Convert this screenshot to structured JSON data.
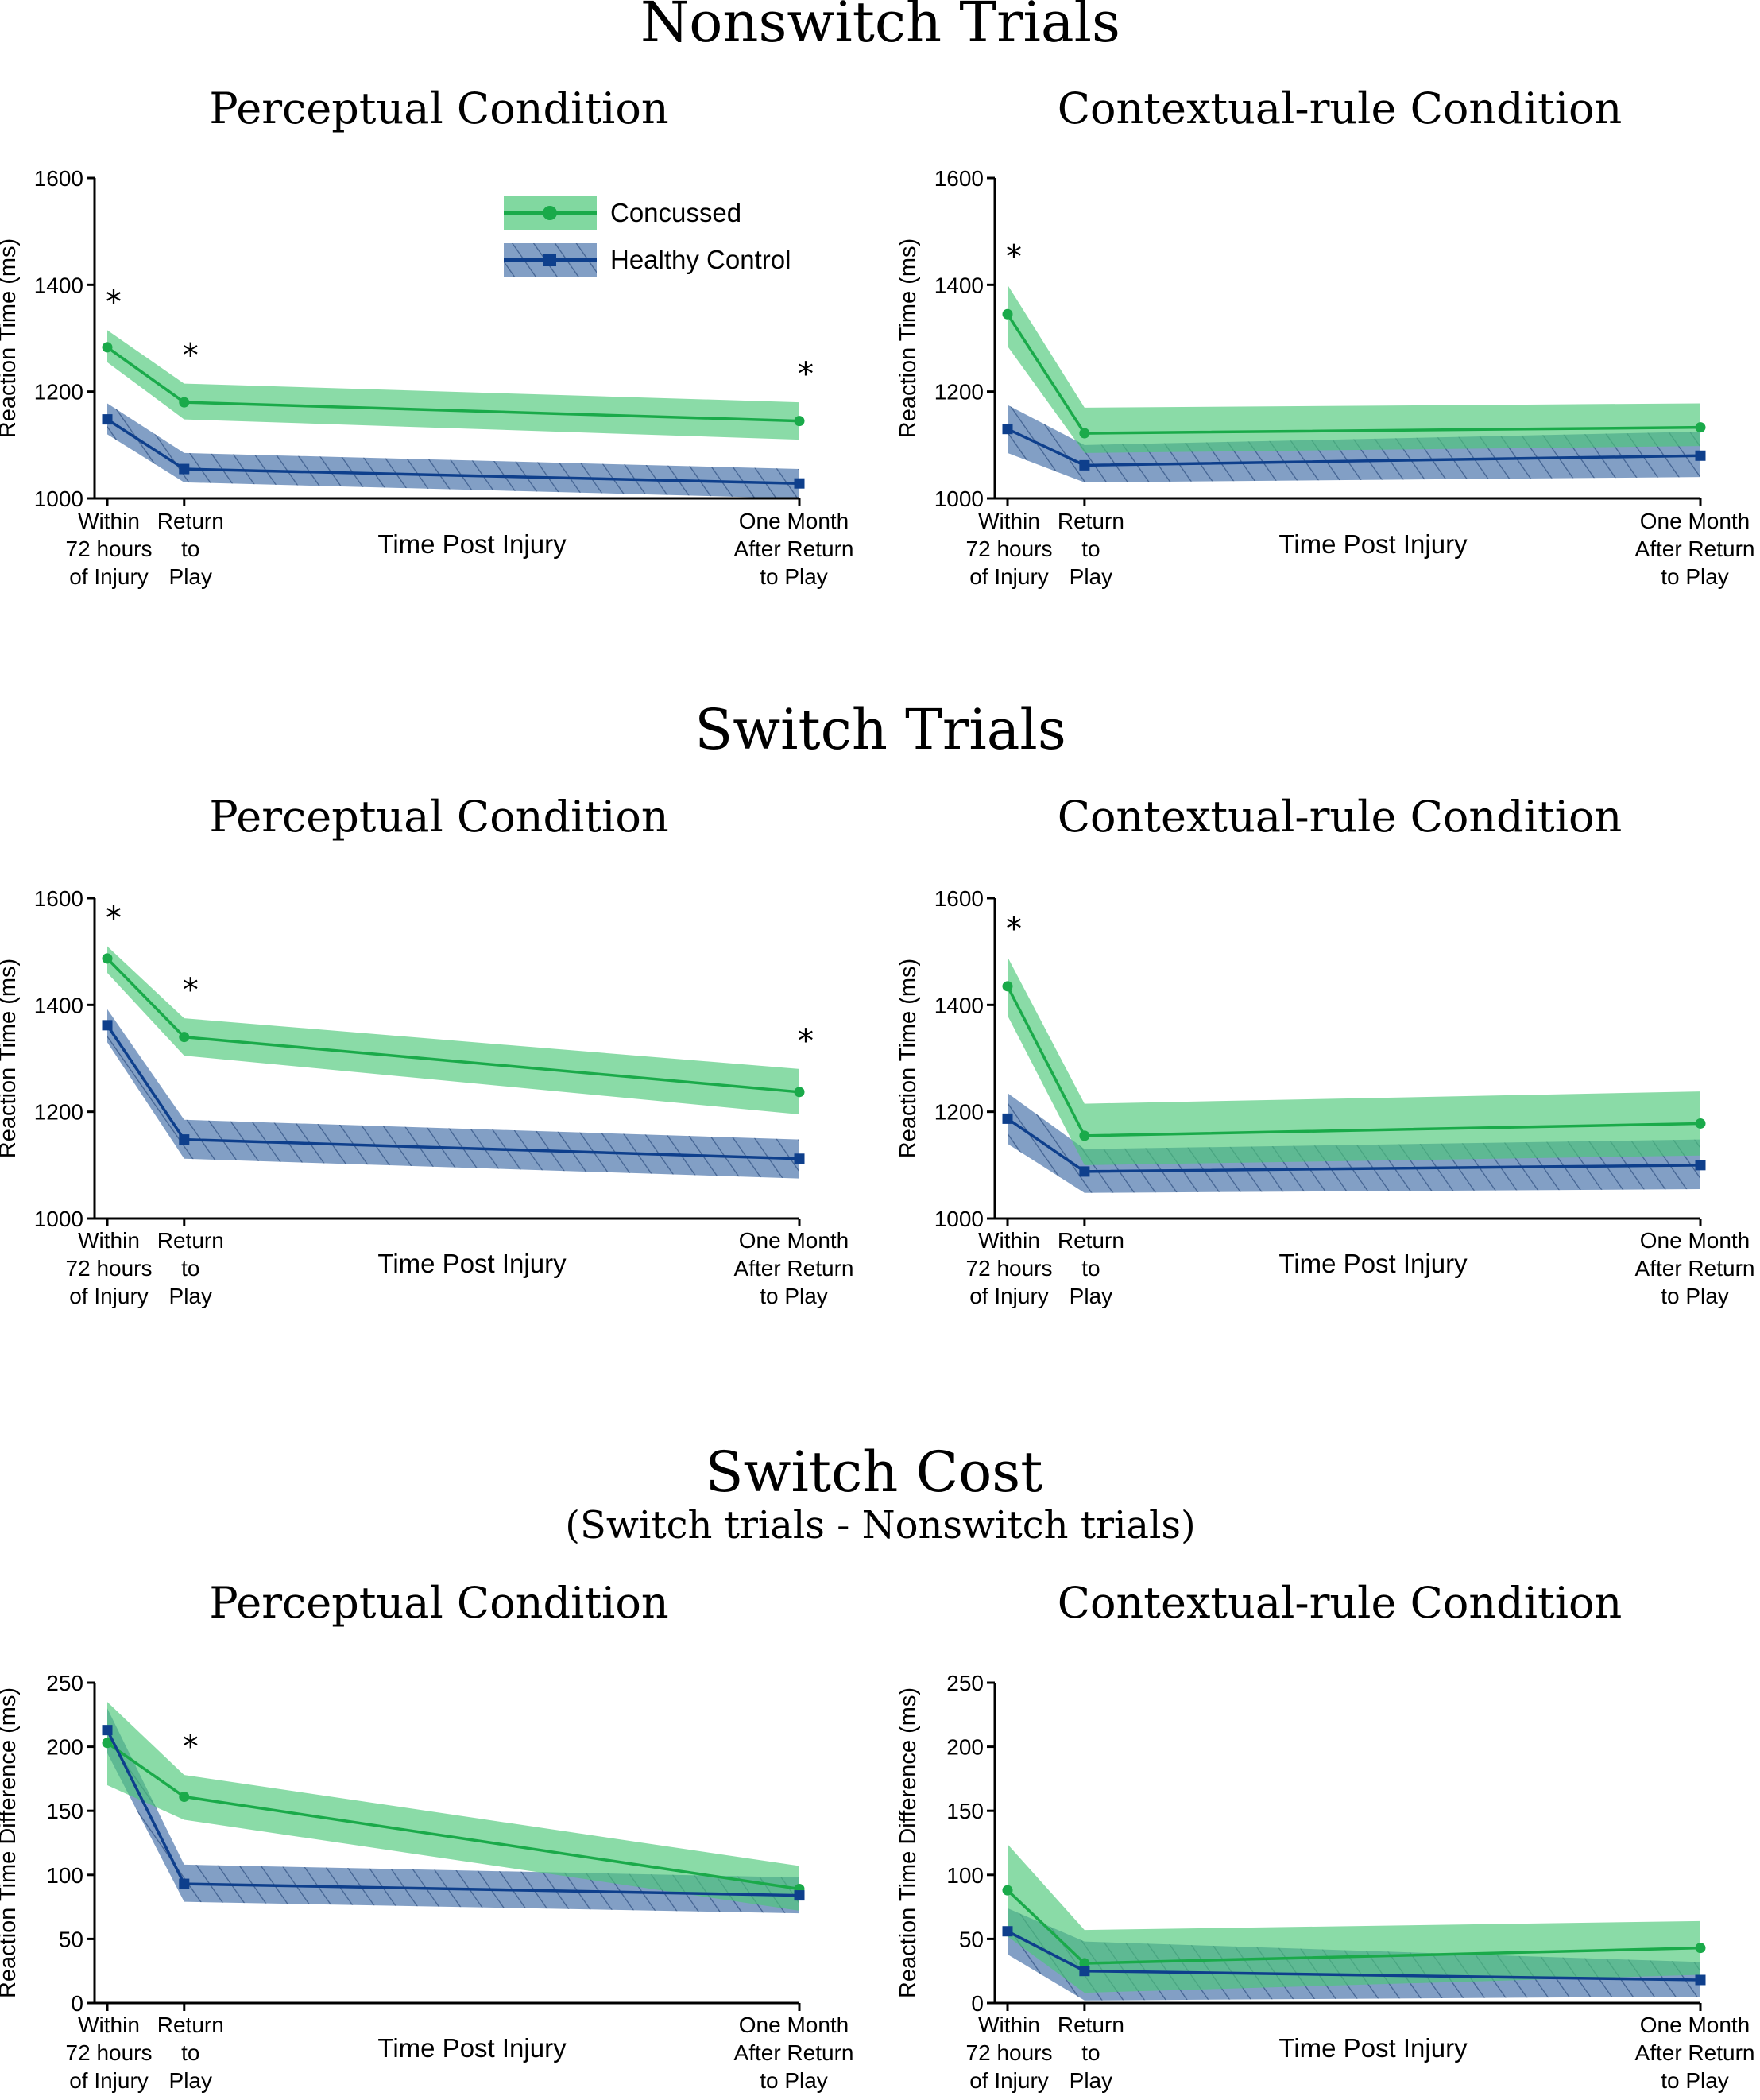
{
  "colors": {
    "concussed": "#1aaa4a",
    "concussed_band": "#4cc878",
    "control": "#0e3f8c",
    "control_band": "#2f5f9e"
  },
  "sections": [
    {
      "title": "Nonswitch Trials",
      "subtitle": ""
    },
    {
      "title": "Switch Trials",
      "subtitle": ""
    },
    {
      "title": "Switch Cost",
      "subtitle": "(Switch trials - Nonswitch trials)"
    }
  ],
  "legend": [
    {
      "label": "Concussed",
      "series": "concussed"
    },
    {
      "label": "Healthy Control",
      "series": "control"
    }
  ],
  "chart_data": [
    {
      "type": "line",
      "title": "Perceptual Condition",
      "xlabel": "Time Post Injury",
      "ylabel": "Reaction Time (ms)",
      "categories": [
        [
          "Within",
          "72 hours",
          "of Injury"
        ],
        [
          "Return",
          "to",
          "Play"
        ],
        [
          "One Month",
          "After Return",
          "to Play"
        ]
      ],
      "x": [
        0,
        1,
        9
      ],
      "ylim": [
        1000,
        1600
      ],
      "yticks": [
        1000,
        1200,
        1400,
        1600
      ],
      "series": [
        {
          "name": "Concussed",
          "values": [
            1283,
            1180,
            1145
          ],
          "lower": [
            1255,
            1148,
            1110
          ],
          "upper": [
            1315,
            1215,
            1180
          ]
        },
        {
          "name": "Healthy Control",
          "values": [
            1148,
            1055,
            1028
          ],
          "lower": [
            1120,
            1030,
            1000
          ],
          "upper": [
            1178,
            1085,
            1055
          ]
        }
      ],
      "significance": [
        "*",
        "*",
        "*"
      ],
      "legend_position": "top-right"
    },
    {
      "type": "line",
      "title": "Contextual-rule Condition",
      "xlabel": "Time Post Injury",
      "ylabel": "Reaction Time (ms)",
      "categories": [
        [
          "Within",
          "72 hours",
          "of Injury"
        ],
        [
          "Return",
          "to",
          "Play"
        ],
        [
          "One Month",
          "After Return",
          "to Play"
        ]
      ],
      "x": [
        0,
        1,
        9
      ],
      "ylim": [
        1000,
        1600
      ],
      "yticks": [
        1000,
        1200,
        1400,
        1600
      ],
      "series": [
        {
          "name": "Concussed",
          "values": [
            1345,
            1122,
            1133
          ],
          "lower": [
            1285,
            1085,
            1098
          ],
          "upper": [
            1400,
            1170,
            1178
          ]
        },
        {
          "name": "Healthy Control",
          "values": [
            1130,
            1062,
            1080
          ],
          "lower": [
            1085,
            1030,
            1040
          ],
          "upper": [
            1175,
            1100,
            1125
          ]
        }
      ],
      "significance": [
        "*",
        "",
        ""
      ]
    },
    {
      "type": "line",
      "title": "Perceptual Condition",
      "xlabel": "Time Post Injury",
      "ylabel": "Reaction Time (ms)",
      "categories": [
        [
          "Within",
          "72 hours",
          "of Injury"
        ],
        [
          "Return",
          "to",
          "Play"
        ],
        [
          "One Month",
          "After Return",
          "to Play"
        ]
      ],
      "x": [
        0,
        1,
        9
      ],
      "ylim": [
        1000,
        1600
      ],
      "yticks": [
        1000,
        1200,
        1400,
        1600
      ],
      "series": [
        {
          "name": "Concussed",
          "values": [
            1487,
            1340,
            1237
          ],
          "lower": [
            1460,
            1305,
            1195
          ],
          "upper": [
            1510,
            1375,
            1280
          ]
        },
        {
          "name": "Healthy Control",
          "values": [
            1362,
            1148,
            1112
          ],
          "lower": [
            1330,
            1112,
            1075
          ],
          "upper": [
            1392,
            1185,
            1148
          ]
        }
      ],
      "significance": [
        "*",
        "*",
        "*"
      ]
    },
    {
      "type": "line",
      "title": "Contextual-rule Condition",
      "xlabel": "Time Post Injury",
      "ylabel": "Reaction Time (ms)",
      "categories": [
        [
          "Within",
          "72 hours",
          "of Injury"
        ],
        [
          "Return",
          "to",
          "Play"
        ],
        [
          "One Month",
          "After Return",
          "to Play"
        ]
      ],
      "x": [
        0,
        1,
        9
      ],
      "ylim": [
        1000,
        1600
      ],
      "yticks": [
        1000,
        1200,
        1400,
        1600
      ],
      "series": [
        {
          "name": "Concussed",
          "values": [
            1435,
            1155,
            1178
          ],
          "lower": [
            1380,
            1100,
            1118
          ],
          "upper": [
            1490,
            1215,
            1238
          ]
        },
        {
          "name": "Healthy Control",
          "values": [
            1187,
            1088,
            1100
          ],
          "lower": [
            1140,
            1048,
            1055
          ],
          "upper": [
            1235,
            1130,
            1148
          ]
        }
      ],
      "significance": [
        "*",
        "",
        ""
      ]
    },
    {
      "type": "line",
      "title": "Perceptual Condition",
      "xlabel": "Time Post Injury",
      "ylabel": "Reaction Time Difference (ms)",
      "categories": [
        [
          "Within",
          "72 hours",
          "of Injury"
        ],
        [
          "Return",
          "to",
          "Play"
        ],
        [
          "One Month",
          "After Return",
          "to Play"
        ]
      ],
      "x": [
        0,
        1,
        9
      ],
      "ylim": [
        0,
        250
      ],
      "yticks": [
        0,
        50,
        100,
        150,
        200,
        250
      ],
      "series": [
        {
          "name": "Concussed",
          "values": [
            203,
            161,
            89
          ],
          "lower": [
            170,
            143,
            72
          ],
          "upper": [
            235,
            178,
            107
          ]
        },
        {
          "name": "Healthy Control",
          "values": [
            213,
            93,
            84
          ],
          "lower": [
            195,
            79,
            70
          ],
          "upper": [
            230,
            108,
            98
          ]
        }
      ],
      "significance": [
        "",
        "*",
        ""
      ]
    },
    {
      "type": "line",
      "title": "Contextual-rule Condition",
      "xlabel": "Time Post Injury",
      "ylabel": "Reaction Time Difference (ms)",
      "categories": [
        [
          "Within",
          "72 hours",
          "of Injury"
        ],
        [
          "Return",
          "to",
          "Play"
        ],
        [
          "One Month",
          "After Return",
          "to Play"
        ]
      ],
      "x": [
        0,
        1,
        9
      ],
      "ylim": [
        0,
        250
      ],
      "yticks": [
        0,
        50,
        100,
        150,
        200,
        250
      ],
      "series": [
        {
          "name": "Concussed",
          "values": [
            88,
            31,
            43
          ],
          "lower": [
            52,
            8,
            22
          ],
          "upper": [
            124,
            57,
            64
          ]
        },
        {
          "name": "Healthy Control",
          "values": [
            56,
            25,
            18
          ],
          "lower": [
            38,
            2,
            5
          ],
          "upper": [
            74,
            48,
            32
          ]
        }
      ],
      "significance": [
        "",
        "",
        ""
      ]
    }
  ]
}
